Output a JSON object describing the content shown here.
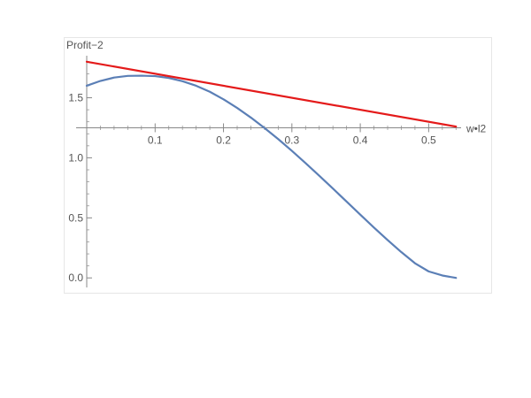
{
  "chart_data": {
    "type": "line",
    "xlabel": "w•l2",
    "ylabel": "Profit−2",
    "xlim": [
      0,
      0.55
    ],
    "ylim": [
      -0.05,
      1.85
    ],
    "axes_origin": {
      "x": 0,
      "y": 1.25
    },
    "x_ticks": [
      {
        "value": 0.1,
        "label": "0.1"
      },
      {
        "value": 0.2,
        "label": "0.2"
      },
      {
        "value": 0.3,
        "label": "0.3"
      },
      {
        "value": 0.4,
        "label": "0.4"
      },
      {
        "value": 0.5,
        "label": "0.5"
      }
    ],
    "y_ticks": [
      {
        "value": 0.0,
        "label": "0.0"
      },
      {
        "value": 0.5,
        "label": "0.5"
      },
      {
        "value": 1.0,
        "label": "1.0"
      },
      {
        "value": 1.5,
        "label": "1.5"
      }
    ],
    "series": [
      {
        "color": "#5b7fb6",
        "x": [
          0,
          0.02,
          0.04,
          0.06,
          0.08,
          0.1,
          0.12,
          0.14,
          0.16,
          0.18,
          0.2,
          0.22,
          0.24,
          0.26,
          0.28,
          0.3,
          0.32,
          0.34,
          0.36,
          0.38,
          0.4,
          0.42,
          0.44,
          0.46,
          0.48,
          0.5,
          0.52,
          0.54
        ],
        "y": [
          1.6,
          1.64,
          1.668,
          1.682,
          1.684,
          1.68,
          1.665,
          1.638,
          1.6,
          1.55,
          1.487,
          1.415,
          1.335,
          1.248,
          1.156,
          1.058,
          0.956,
          0.851,
          0.744,
          0.635,
          0.527,
          0.419,
          0.315,
          0.215,
          0.122,
          0.054,
          0.02,
          0.0
        ]
      },
      {
        "color": "#e41a1a",
        "x": [
          0,
          0.54
        ],
        "y": [
          1.8,
          1.26
        ]
      }
    ],
    "grid": false
  }
}
